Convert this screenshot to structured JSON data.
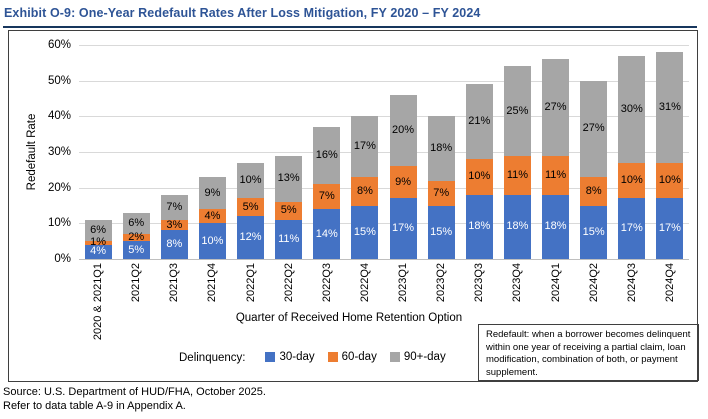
{
  "title": "Exhibit O-9: One-Year Redefault Rates After Loss Mitigation, FY 2020 – FY 2024",
  "chart_data": {
    "type": "bar",
    "stacked": true,
    "title": "Exhibit O-9: One-Year Redefault Rates After Loss Mitigation, FY 2020 – FY 2024",
    "categories": [
      "2020 & 2021Q1",
      "2021Q2",
      "2021Q3",
      "2021Q4",
      "2022Q1",
      "2022Q2",
      "2022Q3",
      "2022Q4",
      "2023Q1",
      "2023Q2",
      "2023Q3",
      "2023Q4",
      "2024Q1",
      "2024Q2",
      "2024Q3",
      "2024Q4"
    ],
    "series": [
      {
        "name": "30-day",
        "color": "#4472C4",
        "label_color": "#FFFFFF",
        "values": [
          4,
          5,
          8,
          10,
          12,
          11,
          14,
          15,
          17,
          15,
          18,
          18,
          18,
          15,
          17,
          17
        ]
      },
      {
        "name": "60-day",
        "color": "#ED7D31",
        "label_color": "#000000",
        "values": [
          1,
          2,
          3,
          4,
          5,
          5,
          7,
          8,
          9,
          7,
          10,
          11,
          11,
          8,
          10,
          10
        ]
      },
      {
        "name": "90+-day",
        "color": "#A6A6A6",
        "label_color": "#000000",
        "values": [
          6,
          6,
          7,
          9,
          10,
          13,
          16,
          17,
          20,
          18,
          21,
          25,
          27,
          27,
          30,
          31
        ]
      }
    ],
    "ylabel": "Redefault Rate",
    "xlabel": "Quarter of Received Home Retention Option",
    "ylim": [
      0,
      60
    ],
    "yticks": [
      "0%",
      "10%",
      "20%",
      "30%",
      "40%",
      "50%",
      "60%"
    ],
    "grid": true,
    "legend_label": "Delinquency:",
    "legend_position": "bottom",
    "data_label_format": "percent"
  },
  "note_box": "Redefault: when a borrower becomes delinquent within one year of receiving a partial claim, loan modification, combination of both, or payment supplement.",
  "source_lines": [
    "Source: U.S. Department of HUD/FHA, October 2025.",
    "Refer to data table A-9 in Appendix A."
  ]
}
